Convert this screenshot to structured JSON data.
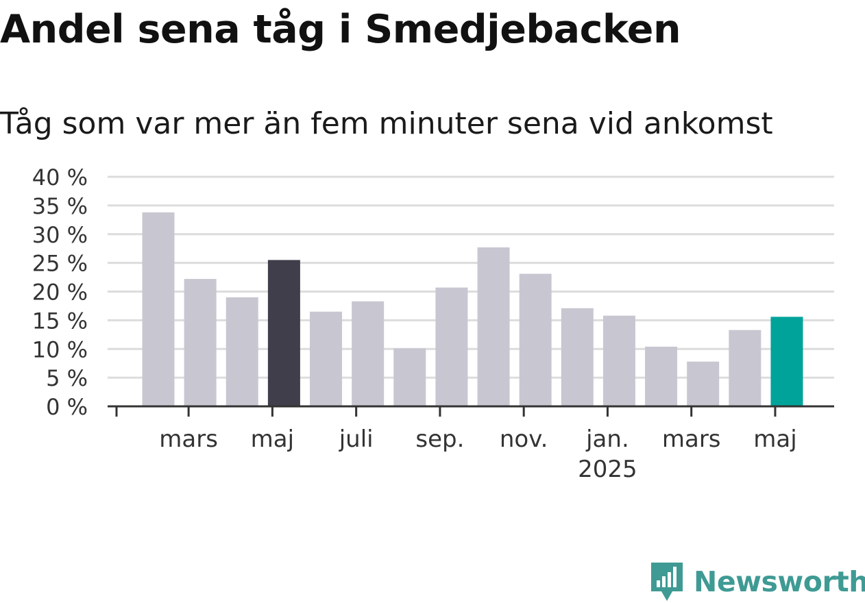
{
  "title": "Andel sena tåg i Smedjebacken",
  "subtitle": "Tåg som var mer än fem minuter sena vid ankomst",
  "logo_text": "Newsworthy",
  "colors": {
    "default_bar": "#c8c7d1",
    "highlight_dark": "#403e4b",
    "highlight_accent": "#00a39a",
    "grid": "#dcdcdc",
    "axis": "#333333",
    "brand": "#3f9a94"
  },
  "chart_data": {
    "type": "bar",
    "title": "Andel sena tåg i Smedjebacken",
    "subtitle": "Tåg som var mer än fem minuter sena vid ankomst",
    "xlabel": "",
    "ylabel": "",
    "ylim": [
      0,
      40
    ],
    "yticks": [
      0,
      5,
      10,
      15,
      20,
      25,
      30,
      35,
      40
    ],
    "ytick_labels": [
      "0 %",
      "5 %",
      "10 %",
      "15 %",
      "20 %",
      "25 %",
      "30 %",
      "35 %",
      "40 %"
    ],
    "grid": true,
    "categories": [
      "2024-02",
      "2024-03",
      "2024-04",
      "2024-05",
      "2024-06",
      "2024-07",
      "2024-08",
      "2024-09",
      "2024-10",
      "2024-11",
      "2024-12",
      "2025-01",
      "2025-02",
      "2025-03",
      "2025-04",
      "2025-05"
    ],
    "values": [
      33.8,
      22.2,
      19.0,
      25.5,
      16.5,
      18.3,
      10.1,
      20.7,
      27.7,
      23.1,
      17.1,
      15.8,
      10.4,
      7.8,
      13.3,
      15.6
    ],
    "bar_highlight": [
      "none",
      "none",
      "none",
      "dark",
      "none",
      "none",
      "none",
      "none",
      "none",
      "none",
      "none",
      "none",
      "none",
      "none",
      "none",
      "accent"
    ],
    "x_ticks": [
      {
        "index": 1,
        "label": "mars",
        "sublabel": ""
      },
      {
        "index": 3,
        "label": "maj",
        "sublabel": ""
      },
      {
        "index": 5,
        "label": "juli",
        "sublabel": ""
      },
      {
        "index": 7,
        "label": "sep.",
        "sublabel": ""
      },
      {
        "index": 9,
        "label": "nov.",
        "sublabel": ""
      },
      {
        "index": 11,
        "label": "jan.",
        "sublabel": "2025"
      },
      {
        "index": 13,
        "label": "mars",
        "sublabel": ""
      },
      {
        "index": 15,
        "label": "maj",
        "sublabel": ""
      }
    ]
  }
}
